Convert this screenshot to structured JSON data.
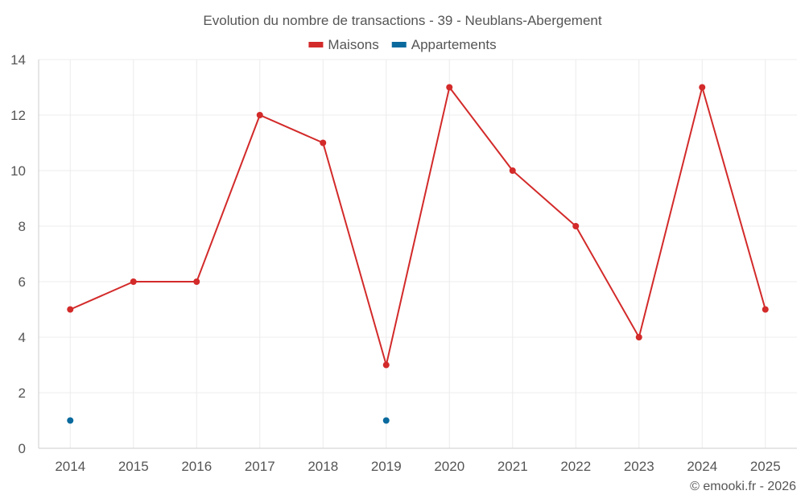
{
  "chart_data": {
    "type": "line",
    "title": "Evolution du nombre de transactions - 39 - Neublans-Abergement",
    "categories": [
      "2014",
      "2015",
      "2016",
      "2017",
      "2018",
      "2019",
      "2020",
      "2021",
      "2022",
      "2023",
      "2024",
      "2025"
    ],
    "ylim": [
      0,
      14
    ],
    "yticks": [
      0,
      2,
      4,
      6,
      8,
      10,
      12,
      14
    ],
    "grid": true,
    "legend_position": "top-center",
    "series": [
      {
        "name": "Maisons",
        "color": "#d32a2a",
        "values": [
          5,
          6,
          6,
          12,
          11,
          3,
          13,
          10,
          8,
          4,
          13,
          5
        ]
      },
      {
        "name": "Appartements",
        "color": "#0a6a9e",
        "values": [
          1,
          null,
          null,
          null,
          null,
          1,
          null,
          null,
          null,
          null,
          null,
          null
        ]
      }
    ],
    "xlabel": "",
    "ylabel": ""
  },
  "credit": "© emooki.fr - 2026"
}
